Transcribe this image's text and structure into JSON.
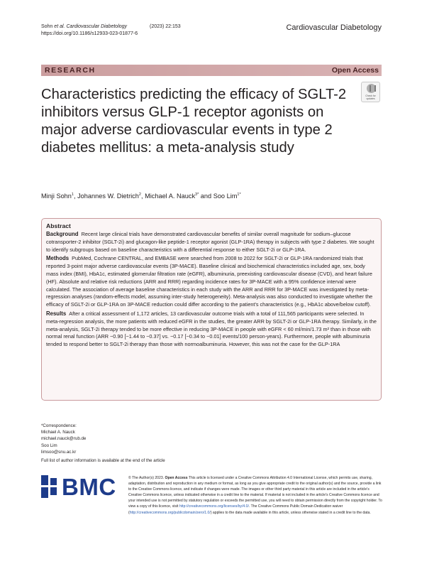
{
  "header": {
    "authors_short": "Sohn ",
    "et_al": "et al.",
    "journal_italic": "Cardiovascular Diabetology",
    "year_vol": "(2023) 22:153",
    "doi": "https://doi.org/10.1186/s12933-023-01877-6",
    "journal_name": "Cardiovascular Diabetology"
  },
  "banner": {
    "type": "RESEARCH",
    "access": "Open Access"
  },
  "crossmark": {
    "line1": "Check for",
    "line2": "updates",
    "icon": "crossmark-icon"
  },
  "title": "Characteristics predicting the efficacy of SGLT-2 inhibitors versus GLP-1 receptor agonists on major adverse cardiovascular events in type 2 diabetes mellitus: a meta-analysis study",
  "authors": [
    {
      "name": "Minji Sohn",
      "sup": "1"
    },
    {
      "name": "Johannes W. Dietrich",
      "sup": "2"
    },
    {
      "name": "Michael A. Nauck",
      "sup": "3*"
    },
    {
      "name": "Soo Lim",
      "sup": "1*"
    }
  ],
  "authors_sep": ", ",
  "authors_and": " and ",
  "abstract": {
    "heading": "Abstract",
    "background_label": "Background",
    "background": "Recent large clinical trials have demonstrated cardiovascular benefits of similar overall magnitude for sodium–glucose cotransporter-2 inhibitor (SGLT-2i) and glucagon-like peptide-1 receptor agonist (GLP-1RA) therapy in subjects with type 2 diabetes. We sought to identify subgroups based on baseline characteristics with a differential response to either SGLT-2i or GLP-1RA.",
    "methods_label": "Methods",
    "methods": "PubMed, Cochrane CENTRAL, and EMBASE were searched from 2008 to 2022 for SGLT-2i or GLP-1RA randomized trials that reported 3-point major adverse cardiovascular events (3P-MACE). Baseline clinical and biochemical characteristics included age, sex, body mass index (BMI), HbA1c, estimated glomerular filtration rate (eGFR), albuminuria, preexisting cardiovascular disease (CVD), and heart failure (HF). Absolute and relative risk reductions (ARR and RRR) regarding incidence rates for 3P-MACE with a 95% confidence interval were calculated. The association of average baseline characteristics in each study with the ARR and RRR for 3P-MACE was investigated by meta-regression analyses (random-effects model, assuming inter-study heterogeneity). Meta-analysis was also conducted to investigate whether the efficacy of SGLT-2i or GLP-1RA on 3P-MACE reduction could differ according to the patient's characteristics (e.g., HbA1c above/below cutoff).",
    "results_label": "Results",
    "results": "After a critical assessment of 1,172 articles, 13 cardiovascular outcome trials with a total of 111,565 participants were selected. In meta-regression analysis, the more patients with reduced eGFR in the studies, the greater ARR by SGLT-2i or GLP-1RA therapy. Similarly, in the meta-analysis, SGLT-2i therapy tended to be more effective in reducing 3P-MACE in people with eGFR < 60 ml/min/1.73 m² than in those with normal renal function (ARR −0.90 [−1.44 to −0.37] vs. −0.17 [−0.34 to −0.01] events/100 person-years). Furthermore, people with albuminuria tended to respond better to SGLT-2i therapy than those with normoalbuminuria. However, this was not the case for the GLP-1RA"
  },
  "correspondence": [
    "*Correspondence:",
    "Michael A. Nauck",
    "michael.nauck@rub.de",
    "Soo Lim",
    "limsoo@snu.ac.kr"
  ],
  "full_list": "Full list of author information is available at the end of the article",
  "publisher": {
    "logo_text": "BMC",
    "logo_icon": "bmc-logo-icon",
    "brand_color": "#1d3b8a"
  },
  "license": {
    "lead": "© The Author(s) 2023. ",
    "open_access": "Open Access",
    "body1": " This article is licensed under a Creative Commons Attribution 4.0 International License, which permits use, sharing, adaptation, distribution and reproduction in any medium or format, as long as you give appropriate credit to the original author(s) and the source, provide a link to the Creative Commons licence, and indicate if changes were made. The images or other third party material in this article are included in the article's Creative Commons licence, unless indicated otherwise in a credit line to the material. If material is not included in the article's Creative Commons licence and your intended use is not permitted by statutory regulation or exceeds the permitted use, you will need to obtain permission directly from the copyright holder. To view a copy of this licence, visit ",
    "link1": "http://creativecommons.org/licenses/by/4.0/",
    "body2": ". The Creative Commons Public Domain Dedication waiver (",
    "link2": "http://creativecommons.org/publicdomain/zero/1.0/",
    "body3": ") applies to the data made available in this article, unless otherwise stated in a credit line to the data.",
    "link_color": "#2a5db0"
  },
  "colors": {
    "banner_bg": "#cb9e9f",
    "banner_text": "#4a2324",
    "abstract_bg": "#fbf5f5",
    "abstract_border": "#c99a9c"
  }
}
